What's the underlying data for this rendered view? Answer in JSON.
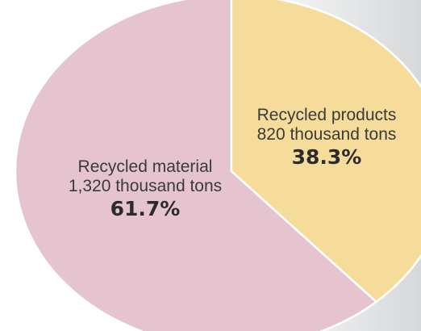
{
  "chart_data": {
    "type": "pie",
    "slices": [
      {
        "label": "Recycled material",
        "amount": "1,320 thousand tons",
        "value": 1320,
        "percent_label": "61.7%",
        "percent": 61.7,
        "color": "#e6c4cf"
      },
      {
        "label": "Recycled products",
        "amount": "820 thousand tons",
        "value": 820,
        "percent_label": "38.3%",
        "percent": 38.3,
        "color": "#f6dc9b"
      }
    ]
  }
}
